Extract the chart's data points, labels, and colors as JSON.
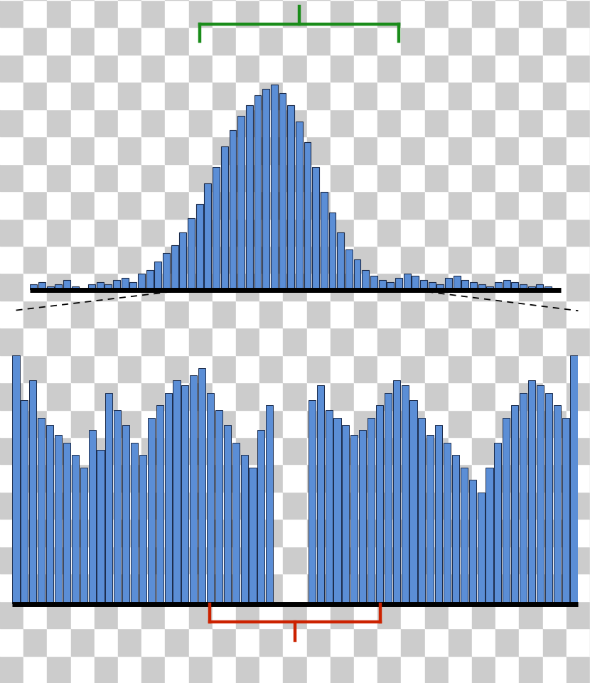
{
  "checkerboard_color1": "#cccccc",
  "checkerboard_color2": "#ffffff",
  "bar_color": "#5B8ED6",
  "bar_edge_color": "#1a2a4a",
  "top_hist": [
    3,
    4,
    2,
    3,
    5,
    2,
    1,
    3,
    4,
    3,
    5,
    6,
    4,
    8,
    10,
    14,
    18,
    22,
    28,
    35,
    42,
    52,
    60,
    70,
    78,
    85,
    90,
    95,
    98,
    100,
    96,
    90,
    82,
    72,
    60,
    48,
    38,
    28,
    20,
    15,
    10,
    7,
    5,
    4,
    6,
    8,
    7,
    5,
    4,
    3,
    6,
    7,
    5,
    4,
    3,
    2,
    4,
    5,
    4,
    3,
    2,
    3,
    2,
    1
  ],
  "bottom_hist_left": [
    100,
    82,
    90,
    75,
    72,
    68,
    65,
    60,
    55,
    70,
    62,
    85,
    78,
    72,
    65,
    60,
    75,
    80,
    85,
    90,
    88,
    92,
    95,
    85,
    78,
    72,
    65,
    60,
    55,
    70,
    80,
    0.5
  ],
  "bottom_hist_right": [
    82,
    88,
    78,
    75,
    72,
    68,
    70,
    75,
    80,
    85,
    90,
    88,
    82,
    75,
    68,
    72,
    65,
    60,
    55,
    50,
    45,
    55,
    65,
    75,
    80,
    85,
    90,
    88,
    85,
    80,
    75,
    100
  ],
  "green": "#1a8c1a",
  "red": "#cc2200",
  "black": "#000000"
}
